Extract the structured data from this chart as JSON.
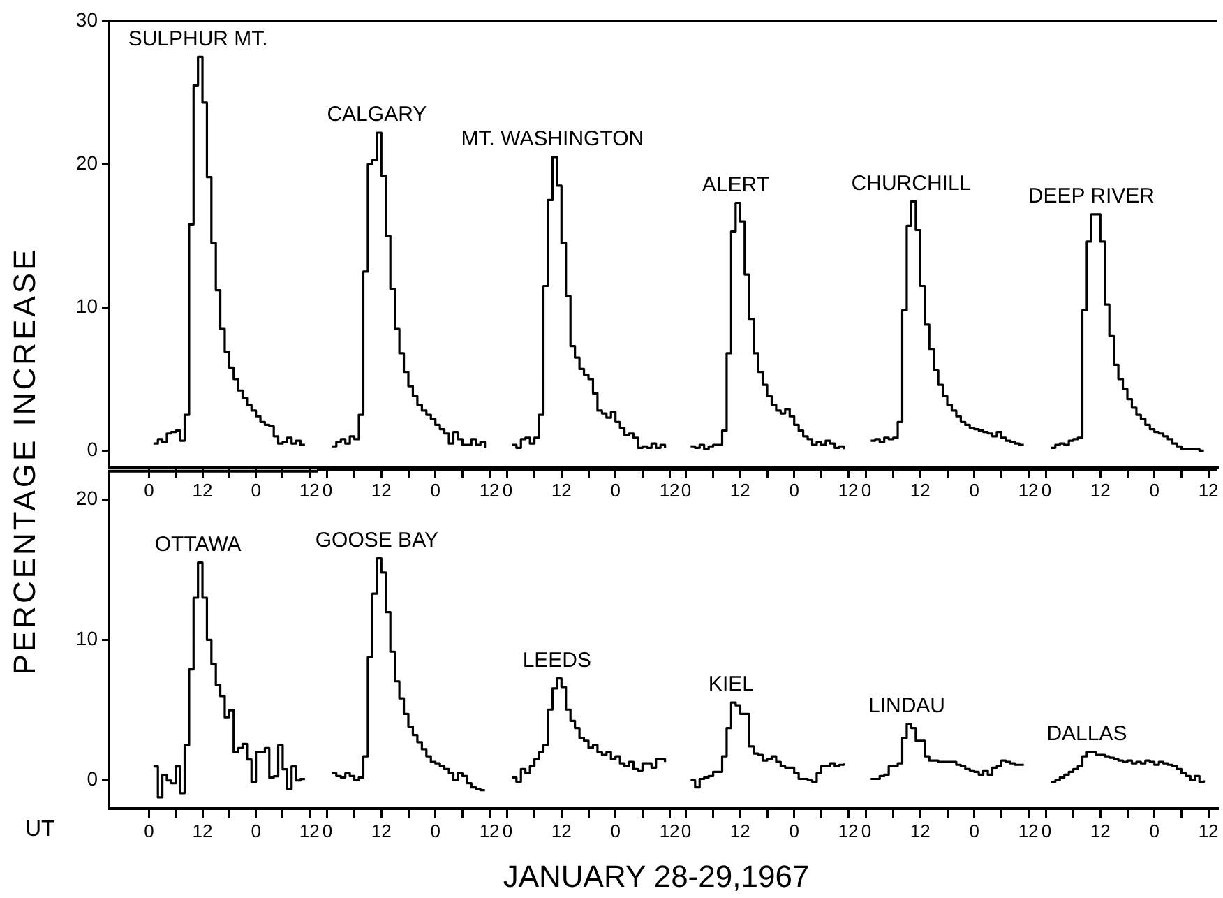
{
  "chart_data": [
    {
      "type": "step",
      "ylabel": "PERCENTAGE INCREASE",
      "xlim": [
        "--01-27T15:00",
        "--01-29T14:00"
      ],
      "ylim": [
        -1.2,
        30
      ],
      "yticks": [
        0,
        10,
        20,
        30
      ],
      "xticks": [
        {
          "value": "--01-28T00:00",
          "label": "0"
        },
        {
          "value": "--01-28T06:00",
          "label": null
        },
        {
          "value": "--01-28T12:00",
          "label": "12"
        },
        {
          "value": "--01-28T18:00",
          "label": null
        },
        {
          "value": "--01-29T00:00",
          "label": "0"
        },
        {
          "value": "--01-29T06:00",
          "label": null
        },
        {
          "value": "--01-29T12:00",
          "label": "12"
        }
      ],
      "grid": false,
      "legend": false,
      "marker": "none",
      "line_style": "solid",
      "series": [
        {
          "name": "SULPHUR MT.",
          "color": "#000000",
          "x": [
            "--01-28T01:00",
            "--01-28T02:00",
            "--01-28T03:00",
            "--01-28T04:00",
            "--01-28T05:00",
            "--01-28T06:00",
            "--01-28T07:00",
            "--01-28T08:00",
            "--01-28T09:00",
            "--01-28T10:00",
            "--01-28T11:00",
            "--01-28T12:00",
            "--01-28T13:00",
            "--01-28T14:00",
            "--01-28T15:00",
            "--01-28T16:00",
            "--01-28T17:00",
            "--01-28T18:00",
            "--01-28T19:00",
            "--01-28T20:00",
            "--01-28T21:00",
            "--01-28T22:00",
            "--01-28T23:00",
            "--01-29T00:00",
            "--01-29T01:00",
            "--01-29T02:00",
            "--01-29T03:00",
            "--01-29T04:00",
            "--01-29T05:00",
            "--01-29T06:00",
            "--01-29T07:00",
            "--01-29T08:00",
            "--01-29T09:00",
            "--01-29T10:00",
            "--01-29T11:00"
          ],
          "values": [
            0.5,
            0.8,
            0.6,
            1.2,
            1.3,
            1.4,
            0.7,
            2.5,
            15.8,
            25.5,
            27.5,
            24.3,
            19.1,
            14.5,
            11.2,
            8.5,
            6.9,
            5.8,
            5.0,
            4.2,
            3.7,
            3.2,
            2.8,
            2.4,
            2.0,
            1.8,
            1.7,
            1.0,
            0.5,
            0.6,
            0.9,
            0.5,
            0.7,
            0.4,
            0.4
          ]
        }
      ]
    },
    {
      "type": "step",
      "tick_labels": "x",
      "xlim": [
        "--01-27T22:00",
        "--01-29T14:00"
      ],
      "ylim": [
        -1.2,
        30
      ],
      "xticks": [
        {
          "value": "--01-28T00:00",
          "label": "0"
        },
        {
          "value": "--01-28T06:00",
          "label": null
        },
        {
          "value": "--01-28T12:00",
          "label": "12"
        },
        {
          "value": "--01-28T18:00",
          "label": null
        },
        {
          "value": "--01-29T00:00",
          "label": "0"
        },
        {
          "value": "--01-29T06:00",
          "label": null
        },
        {
          "value": "--01-29T12:00",
          "label": "12"
        }
      ],
      "grid": false,
      "legend": false,
      "marker": "none",
      "line_style": "solid",
      "series": [
        {
          "name": "CALGARY",
          "color": "#000000",
          "x": [
            "--01-28T01:00",
            "--01-28T02:00",
            "--01-28T03:00",
            "--01-28T04:00",
            "--01-28T05:00",
            "--01-28T06:00",
            "--01-28T07:00",
            "--01-28T08:00",
            "--01-28T09:00",
            "--01-28T10:00",
            "--01-28T11:00",
            "--01-28T12:00",
            "--01-28T13:00",
            "--01-28T14:00",
            "--01-28T15:00",
            "--01-28T16:00",
            "--01-28T17:00",
            "--01-28T18:00",
            "--01-28T19:00",
            "--01-28T20:00",
            "--01-28T21:00",
            "--01-28T22:00",
            "--01-28T23:00",
            "--01-29T00:00",
            "--01-29T01:00",
            "--01-29T02:00",
            "--01-29T03:00",
            "--01-29T04:00",
            "--01-29T05:00",
            "--01-29T06:00",
            "--01-29T07:00",
            "--01-29T08:00",
            "--01-29T09:00",
            "--01-29T10:00",
            "--01-29T11:00"
          ],
          "values": [
            0.3,
            0.6,
            0.8,
            0.5,
            1.0,
            0.8,
            2.5,
            12.5,
            20.0,
            20.3,
            22.2,
            19.2,
            15.0,
            11.3,
            8.5,
            6.8,
            5.5,
            4.5,
            3.8,
            3.2,
            2.8,
            2.5,
            2.2,
            1.8,
            1.5,
            1.2,
            0.5,
            1.3,
            0.8,
            0.4,
            0.4,
            0.8,
            0.4,
            0.6,
            0.2
          ]
        }
      ]
    },
    {
      "type": "step",
      "tick_labels": "x",
      "xlim": [
        "--01-27T22:00",
        "--01-29T14:00"
      ],
      "ylim": [
        -1.2,
        30
      ],
      "xticks": [
        {
          "value": "--01-28T00:00",
          "label": "0"
        },
        {
          "value": "--01-28T06:00",
          "label": null
        },
        {
          "value": "--01-28T12:00",
          "label": "12"
        },
        {
          "value": "--01-28T18:00",
          "label": null
        },
        {
          "value": "--01-29T00:00",
          "label": "0"
        },
        {
          "value": "--01-29T06:00",
          "label": null
        },
        {
          "value": "--01-29T12:00",
          "label": "12"
        }
      ],
      "grid": false,
      "legend": false,
      "marker": "none",
      "line_style": "solid",
      "series": [
        {
          "name": "MT. WASHINGTON",
          "color": "#000000",
          "x": [
            "--01-28T01:00",
            "--01-28T02:00",
            "--01-28T03:00",
            "--01-28T04:00",
            "--01-28T05:00",
            "--01-28T06:00",
            "--01-28T07:00",
            "--01-28T08:00",
            "--01-28T09:00",
            "--01-28T10:00",
            "--01-28T11:00",
            "--01-28T12:00",
            "--01-28T13:00",
            "--01-28T14:00",
            "--01-28T15:00",
            "--01-28T16:00",
            "--01-28T17:00",
            "--01-28T18:00",
            "--01-28T19:00",
            "--01-28T20:00",
            "--01-28T21:00",
            "--01-28T22:00",
            "--01-28T23:00",
            "--01-29T00:00",
            "--01-29T01:00",
            "--01-29T02:00",
            "--01-29T03:00",
            "--01-29T04:00",
            "--01-29T05:00",
            "--01-29T06:00",
            "--01-29T07:00",
            "--01-29T08:00",
            "--01-29T09:00",
            "--01-29T10:00",
            "--01-29T11:00"
          ],
          "values": [
            0.4,
            0.2,
            0.8,
            0.9,
            0.5,
            0.9,
            2.5,
            11.5,
            17.5,
            20.5,
            18.5,
            14.5,
            10.8,
            7.3,
            6.5,
            5.7,
            5.3,
            5.0,
            4.0,
            2.8,
            2.6,
            2.3,
            2.7,
            2.0,
            1.6,
            1.1,
            1.2,
            0.9,
            0.2,
            0.3,
            0.2,
            0.5,
            0.2,
            0.4,
            0.2
          ]
        }
      ]
    },
    {
      "type": "step",
      "tick_labels": "x",
      "xlim": [
        "--01-27T22:00",
        "--01-29T14:00"
      ],
      "ylim": [
        -1.2,
        30
      ],
      "xticks": [
        {
          "value": "--01-28T00:00",
          "label": "0"
        },
        {
          "value": "--01-28T06:00",
          "label": null
        },
        {
          "value": "--01-28T12:00",
          "label": "12"
        },
        {
          "value": "--01-28T18:00",
          "label": null
        },
        {
          "value": "--01-29T00:00",
          "label": "0"
        },
        {
          "value": "--01-29T06:00",
          "label": null
        },
        {
          "value": "--01-29T12:00",
          "label": "12"
        }
      ],
      "grid": false,
      "legend": false,
      "marker": "none",
      "line_style": "solid",
      "series": [
        {
          "name": "ALERT",
          "color": "#000000",
          "x": [
            "--01-28T01:00",
            "--01-28T02:00",
            "--01-28T03:00",
            "--01-28T04:00",
            "--01-28T05:00",
            "--01-28T06:00",
            "--01-28T07:00",
            "--01-28T08:00",
            "--01-28T09:00",
            "--01-28T10:00",
            "--01-28T11:00",
            "--01-28T12:00",
            "--01-28T13:00",
            "--01-28T14:00",
            "--01-28T15:00",
            "--01-28T16:00",
            "--01-28T17:00",
            "--01-28T18:00",
            "--01-28T19:00",
            "--01-28T20:00",
            "--01-28T21:00",
            "--01-28T22:00",
            "--01-28T23:00",
            "--01-29T00:00",
            "--01-29T01:00",
            "--01-29T02:00",
            "--01-29T03:00",
            "--01-29T04:00",
            "--01-29T05:00",
            "--01-29T06:00",
            "--01-29T07:00",
            "--01-29T08:00",
            "--01-29T09:00",
            "--01-29T10:00",
            "--01-29T11:00"
          ],
          "values": [
            0.3,
            0.2,
            0.4,
            0.1,
            0.3,
            0.4,
            0.4,
            1.4,
            6.8,
            15.3,
            17.3,
            16.0,
            12.3,
            9.2,
            6.8,
            5.5,
            4.6,
            3.8,
            3.2,
            2.8,
            2.6,
            2.9,
            2.4,
            1.8,
            1.4,
            1.0,
            0.8,
            0.4,
            0.6,
            0.4,
            0.7,
            0.5,
            0.2,
            0.3,
            0.1
          ]
        }
      ]
    },
    {
      "type": "step",
      "tick_labels": "x",
      "xlim": [
        "--01-27T22:00",
        "--01-29T14:00"
      ],
      "ylim": [
        -1.2,
        30
      ],
      "xticks": [
        {
          "value": "--01-28T00:00",
          "label": "0"
        },
        {
          "value": "--01-28T06:00",
          "label": null
        },
        {
          "value": "--01-28T12:00",
          "label": "12"
        },
        {
          "value": "--01-28T18:00",
          "label": null
        },
        {
          "value": "--01-29T00:00",
          "label": "0"
        },
        {
          "value": "--01-29T06:00",
          "label": null
        },
        {
          "value": "--01-29T12:00",
          "label": "12"
        }
      ],
      "grid": false,
      "legend": false,
      "marker": "none",
      "line_style": "solid",
      "series": [
        {
          "name": "CHURCHILL",
          "color": "#000000",
          "x": [
            "--01-28T01:00",
            "--01-28T02:00",
            "--01-28T03:00",
            "--01-28T04:00",
            "--01-28T05:00",
            "--01-28T06:00",
            "--01-28T07:00",
            "--01-28T08:00",
            "--01-28T09:00",
            "--01-28T10:00",
            "--01-28T11:00",
            "--01-28T12:00",
            "--01-28T13:00",
            "--01-28T14:00",
            "--01-28T15:00",
            "--01-28T16:00",
            "--01-28T17:00",
            "--01-28T18:00",
            "--01-28T19:00",
            "--01-28T20:00",
            "--01-28T21:00",
            "--01-28T22:00",
            "--01-28T23:00",
            "--01-29T00:00",
            "--01-29T01:00",
            "--01-29T02:00",
            "--01-29T03:00",
            "--01-29T04:00",
            "--01-29T05:00",
            "--01-29T06:00",
            "--01-29T07:00",
            "--01-29T08:00",
            "--01-29T09:00",
            "--01-29T10:00",
            "--01-29T11:00"
          ],
          "values": [
            0.7,
            0.8,
            0.6,
            0.9,
            0.8,
            0.9,
            2.0,
            9.8,
            15.7,
            17.4,
            15.4,
            11.5,
            8.8,
            7.1,
            5.6,
            4.6,
            3.8,
            3.2,
            2.8,
            2.4,
            2.0,
            1.8,
            1.6,
            1.5,
            1.4,
            1.3,
            1.2,
            1.0,
            1.3,
            0.9,
            0.7,
            0.6,
            0.5,
            0.4,
            0.4
          ]
        }
      ]
    },
    {
      "type": "step",
      "tick_labels": "x",
      "xlim": [
        "--01-27T22:00",
        "--01-29T14:00"
      ],
      "ylim": [
        -1.2,
        30
      ],
      "xticks": [
        {
          "value": "--01-28T00:00",
          "label": "0"
        },
        {
          "value": "--01-28T06:00",
          "label": null
        },
        {
          "value": "--01-28T12:00",
          "label": "12"
        },
        {
          "value": "--01-28T18:00",
          "label": null
        },
        {
          "value": "--01-29T00:00",
          "label": "0"
        },
        {
          "value": "--01-29T06:00",
          "label": null
        },
        {
          "value": "--01-29T12:00",
          "label": "12"
        }
      ],
      "grid": false,
      "legend": false,
      "marker": "none",
      "line_style": "solid",
      "series": [
        {
          "name": "DEEP RIVER",
          "color": "#000000",
          "x": [
            "--01-28T01:00",
            "--01-28T02:00",
            "--01-28T03:00",
            "--01-28T04:00",
            "--01-28T05:00",
            "--01-28T06:00",
            "--01-28T07:00",
            "--01-28T08:00",
            "--01-28T09:00",
            "--01-28T10:00",
            "--01-28T11:00",
            "--01-28T12:00",
            "--01-28T13:00",
            "--01-28T14:00",
            "--01-28T15:00",
            "--01-28T16:00",
            "--01-28T17:00",
            "--01-28T18:00",
            "--01-28T19:00",
            "--01-28T20:00",
            "--01-28T21:00",
            "--01-28T22:00",
            "--01-28T23:00",
            "--01-29T00:00",
            "--01-29T01:00",
            "--01-29T02:00",
            "--01-29T03:00",
            "--01-29T04:00",
            "--01-29T05:00",
            "--01-29T06:00",
            "--01-29T07:00",
            "--01-29T08:00",
            "--01-29T09:00",
            "--01-29T10:00",
            "--01-29T11:00"
          ],
          "values": [
            0.2,
            0.4,
            0.5,
            0.4,
            0.7,
            0.8,
            0.9,
            9.8,
            14.6,
            16.5,
            16.5,
            14.6,
            10.2,
            8.0,
            6.0,
            5.0,
            4.3,
            3.6,
            3.0,
            2.5,
            2.2,
            1.8,
            1.5,
            1.3,
            1.2,
            1.0,
            0.8,
            0.5,
            0.3,
            0.1,
            0.1,
            0.1,
            0.1,
            0.0,
            0.0
          ]
        }
      ]
    },
    {
      "type": "step",
      "xlabel": "JANUARY 28-29,1967",
      "annotations": [
        "UT"
      ],
      "xlim": [
        "--01-27T15:00",
        "--01-29T14:00"
      ],
      "ylim": [
        -2,
        22
      ],
      "yticks": [
        0,
        10,
        20
      ],
      "xticks": [
        {
          "value": "--01-28T00:00",
          "label": "0"
        },
        {
          "value": "--01-28T06:00",
          "label": null
        },
        {
          "value": "--01-28T12:00",
          "label": "12"
        },
        {
          "value": "--01-28T18:00",
          "label": null
        },
        {
          "value": "--01-29T00:00",
          "label": "0"
        },
        {
          "value": "--01-29T06:00",
          "label": null
        },
        {
          "value": "--01-29T12:00",
          "label": "12"
        }
      ],
      "grid": false,
      "legend": false,
      "marker": "none",
      "line_style": "solid",
      "series": [
        {
          "name": "OTTAWA",
          "color": "#000000",
          "x": [
            "--01-28T01:00",
            "--01-28T02:00",
            "--01-28T03:00",
            "--01-28T04:00",
            "--01-28T05:00",
            "--01-28T06:00",
            "--01-28T07:00",
            "--01-28T08:00",
            "--01-28T09:00",
            "--01-28T10:00",
            "--01-28T11:00",
            "--01-28T12:00",
            "--01-28T13:00",
            "--01-28T14:00",
            "--01-28T15:00",
            "--01-28T16:00",
            "--01-28T17:00",
            "--01-28T18:00",
            "--01-28T19:00",
            "--01-28T20:00",
            "--01-28T21:00",
            "--01-28T22:00",
            "--01-28T23:00",
            "--01-29T00:00",
            "--01-29T01:00",
            "--01-29T02:00",
            "--01-29T03:00",
            "--01-29T04:00",
            "--01-29T05:00",
            "--01-29T06:00",
            "--01-29T07:00",
            "--01-29T08:00",
            "--01-29T09:00",
            "--01-29T10:00",
            "--01-29T11:00"
          ],
          "values": [
            1.0,
            -1.2,
            0.4,
            0.0,
            -0.2,
            1.0,
            -0.9,
            2.5,
            7.9,
            13.0,
            15.5,
            13.0,
            10.0,
            8.3,
            6.8,
            6.0,
            4.5,
            5.0,
            2.0,
            2.3,
            2.6,
            1.5,
            -0.1,
            2.0,
            2.0,
            2.3,
            0.2,
            0.3,
            2.5,
            0.8,
            -0.6,
            1.0,
            0.0,
            0.1,
            0.1
          ]
        }
      ]
    },
    {
      "type": "step",
      "tick_labels": "x",
      "xlim": [
        "--01-27T22:00",
        "--01-29T14:00"
      ],
      "ylim": [
        -2,
        22
      ],
      "xticks": [
        {
          "value": "--01-28T00:00",
          "label": "0"
        },
        {
          "value": "--01-28T06:00",
          "label": null
        },
        {
          "value": "--01-28T12:00",
          "label": "12"
        },
        {
          "value": "--01-28T18:00",
          "label": null
        },
        {
          "value": "--01-29T00:00",
          "label": "0"
        },
        {
          "value": "--01-29T06:00",
          "label": null
        },
        {
          "value": "--01-29T12:00",
          "label": "12"
        }
      ],
      "grid": false,
      "legend": false,
      "marker": "none",
      "line_style": "solid",
      "series": [
        {
          "name": "GOOSE BAY",
          "color": "#000000",
          "x": [
            "--01-28T01:00",
            "--01-28T02:00",
            "--01-28T03:00",
            "--01-28T04:00",
            "--01-28T05:00",
            "--01-28T06:00",
            "--01-28T07:00",
            "--01-28T08:00",
            "--01-28T09:00",
            "--01-28T10:00",
            "--01-28T11:00",
            "--01-28T12:00",
            "--01-28T13:00",
            "--01-28T14:00",
            "--01-28T15:00",
            "--01-28T16:00",
            "--01-28T17:00",
            "--01-28T18:00",
            "--01-28T19:00",
            "--01-28T20:00",
            "--01-28T21:00",
            "--01-28T22:00",
            "--01-28T23:00",
            "--01-29T00:00",
            "--01-29T01:00",
            "--01-29T02:00",
            "--01-29T03:00",
            "--01-29T04:00",
            "--01-29T05:00",
            "--01-29T06:00",
            "--01-29T07:00",
            "--01-29T08:00",
            "--01-29T09:00",
            "--01-29T10:00",
            "--01-29T11:00"
          ],
          "values": [
            0.5,
            0.3,
            0.2,
            0.5,
            0.3,
            0.0,
            0.2,
            1.7,
            8.7,
            13.2,
            15.7,
            14.7,
            11.9,
            9.1,
            7.0,
            5.8,
            4.7,
            3.8,
            3.2,
            2.7,
            2.2,
            1.7,
            1.3,
            1.2,
            1.0,
            0.8,
            0.5,
            0.0,
            0.5,
            0.3,
            -0.2,
            -0.5,
            -0.6,
            -0.7,
            -0.7
          ]
        }
      ]
    },
    {
      "type": "step",
      "tick_labels": "x",
      "xlim": [
        "--01-27T22:00",
        "--01-29T14:00"
      ],
      "ylim": [
        -2,
        22
      ],
      "xticks": [
        {
          "value": "--01-28T00:00",
          "label": "0"
        },
        {
          "value": "--01-28T06:00",
          "label": null
        },
        {
          "value": "--01-28T12:00",
          "label": "12"
        },
        {
          "value": "--01-28T18:00",
          "label": null
        },
        {
          "value": "--01-29T00:00",
          "label": "0"
        },
        {
          "value": "--01-29T06:00",
          "label": null
        },
        {
          "value": "--01-29T12:00",
          "label": "12"
        }
      ],
      "grid": false,
      "legend": false,
      "marker": "none",
      "line_style": "solid",
      "series": [
        {
          "name": "LEEDS",
          "color": "#000000",
          "x": [
            "--01-28T01:00",
            "--01-28T02:00",
            "--01-28T03:00",
            "--01-28T04:00",
            "--01-28T05:00",
            "--01-28T06:00",
            "--01-28T07:00",
            "--01-28T08:00",
            "--01-28T09:00",
            "--01-28T10:00",
            "--01-28T11:00",
            "--01-28T12:00",
            "--01-28T13:00",
            "--01-28T14:00",
            "--01-28T15:00",
            "--01-28T16:00",
            "--01-28T17:00",
            "--01-28T18:00",
            "--01-28T19:00",
            "--01-28T20:00",
            "--01-28T21:00",
            "--01-28T22:00",
            "--01-28T23:00",
            "--01-29T00:00",
            "--01-29T01:00",
            "--01-29T02:00",
            "--01-29T03:00",
            "--01-29T04:00",
            "--01-29T05:00",
            "--01-29T06:00",
            "--01-29T07:00",
            "--01-29T08:00",
            "--01-29T09:00",
            "--01-29T10:00",
            "--01-29T11:00"
          ],
          "values": [
            0.2,
            -0.1,
            0.8,
            0.5,
            1.0,
            1.5,
            2.0,
            2.5,
            5.0,
            6.5,
            7.2,
            6.6,
            5.0,
            4.2,
            3.7,
            3.0,
            2.8,
            2.3,
            2.5,
            2.0,
            1.8,
            2.0,
            1.5,
            1.7,
            1.2,
            1.0,
            1.3,
            0.8,
            0.7,
            1.2,
            1.2,
            0.9,
            1.5,
            1.5,
            1.3
          ]
        }
      ]
    },
    {
      "type": "step",
      "tick_labels": "x",
      "xlim": [
        "--01-27T22:00",
        "--01-29T14:00"
      ],
      "ylim": [
        -2,
        22
      ],
      "xticks": [
        {
          "value": "--01-28T00:00",
          "label": "0"
        },
        {
          "value": "--01-28T06:00",
          "label": null
        },
        {
          "value": "--01-28T12:00",
          "label": "12"
        },
        {
          "value": "--01-28T18:00",
          "label": null
        },
        {
          "value": "--01-29T00:00",
          "label": "0"
        },
        {
          "value": "--01-29T06:00",
          "label": null
        },
        {
          "value": "--01-29T12:00",
          "label": "12"
        }
      ],
      "grid": false,
      "legend": false,
      "marker": "none",
      "line_style": "solid",
      "series": [
        {
          "name": "KIEL",
          "color": "#000000",
          "x": [
            "--01-28T01:00",
            "--01-28T02:00",
            "--01-28T03:00",
            "--01-28T04:00",
            "--01-28T05:00",
            "--01-28T06:00",
            "--01-28T07:00",
            "--01-28T08:00",
            "--01-28T09:00",
            "--01-28T10:00",
            "--01-28T11:00",
            "--01-28T12:00",
            "--01-28T13:00",
            "--01-28T14:00",
            "--01-28T15:00",
            "--01-28T16:00",
            "--01-28T17:00",
            "--01-28T18:00",
            "--01-28T19:00",
            "--01-28T20:00",
            "--01-28T21:00",
            "--01-28T22:00",
            "--01-28T23:00",
            "--01-29T00:00",
            "--01-29T01:00",
            "--01-29T02:00",
            "--01-29T03:00",
            "--01-29T04:00",
            "--01-29T05:00",
            "--01-29T06:00",
            "--01-29T07:00",
            "--01-29T08:00",
            "--01-29T09:00",
            "--01-29T10:00",
            "--01-29T11:00"
          ],
          "values": [
            0.0,
            -0.5,
            0.1,
            0.2,
            0.3,
            0.6,
            0.6,
            1.7,
            3.7,
            5.5,
            5.3,
            4.7,
            4.7,
            2.4,
            1.9,
            1.8,
            1.4,
            1.5,
            1.7,
            1.3,
            1.0,
            0.9,
            0.9,
            0.5,
            0.1,
            0.1,
            0.0,
            -0.1,
            0.5,
            1.0,
            1.0,
            1.2,
            1.0,
            1.1,
            1.2
          ]
        }
      ]
    },
    {
      "type": "step",
      "tick_labels": "x",
      "xlim": [
        "--01-27T22:00",
        "--01-29T14:00"
      ],
      "ylim": [
        -2,
        22
      ],
      "xticks": [
        {
          "value": "--01-28T00:00",
          "label": "0"
        },
        {
          "value": "--01-28T06:00",
          "label": null
        },
        {
          "value": "--01-28T12:00",
          "label": "12"
        },
        {
          "value": "--01-28T18:00",
          "label": null
        },
        {
          "value": "--01-29T00:00",
          "label": "0"
        },
        {
          "value": "--01-29T06:00",
          "label": null
        },
        {
          "value": "--01-29T12:00",
          "label": "12"
        }
      ],
      "grid": false,
      "legend": false,
      "marker": "none",
      "line_style": "solid",
      "series": [
        {
          "name": "LINDAU",
          "color": "#000000",
          "x": [
            "--01-28T01:00",
            "--01-28T02:00",
            "--01-28T03:00",
            "--01-28T04:00",
            "--01-28T05:00",
            "--01-28T06:00",
            "--01-28T07:00",
            "--01-28T08:00",
            "--01-28T09:00",
            "--01-28T10:00",
            "--01-28T11:00",
            "--01-28T12:00",
            "--01-28T13:00",
            "--01-28T14:00",
            "--01-28T15:00",
            "--01-28T16:00",
            "--01-28T17:00",
            "--01-28T18:00",
            "--01-28T19:00",
            "--01-28T20:00",
            "--01-28T21:00",
            "--01-28T22:00",
            "--01-28T23:00",
            "--01-29T00:00",
            "--01-29T01:00",
            "--01-29T02:00",
            "--01-29T03:00",
            "--01-29T04:00",
            "--01-29T05:00",
            "--01-29T06:00",
            "--01-29T07:00",
            "--01-29T08:00",
            "--01-29T09:00",
            "--01-29T10:00",
            "--01-29T11:00"
          ],
          "values": [
            0.1,
            0.1,
            0.3,
            0.4,
            1.0,
            1.0,
            1.2,
            3.0,
            4.0,
            3.7,
            2.8,
            2.8,
            1.7,
            1.4,
            1.4,
            1.3,
            1.3,
            1.3,
            1.3,
            1.1,
            1.0,
            0.8,
            0.7,
            0.6,
            0.4,
            0.7,
            0.4,
            0.9,
            1.0,
            1.4,
            1.3,
            1.2,
            1.1,
            1.1,
            1.1
          ]
        }
      ]
    },
    {
      "type": "step",
      "tick_labels": "x",
      "xlim": [
        "--01-27T22:00",
        "--01-29T14:00"
      ],
      "ylim": [
        -2,
        22
      ],
      "xticks": [
        {
          "value": "--01-28T00:00",
          "label": "0"
        },
        {
          "value": "--01-28T06:00",
          "label": null
        },
        {
          "value": "--01-28T12:00",
          "label": "12"
        },
        {
          "value": "--01-28T18:00",
          "label": null
        },
        {
          "value": "--01-29T00:00",
          "label": "0"
        },
        {
          "value": "--01-29T06:00",
          "label": null
        },
        {
          "value": "--01-29T12:00",
          "label": "12"
        }
      ],
      "grid": false,
      "legend": false,
      "marker": "none",
      "line_style": "solid",
      "series": [
        {
          "name": "DALLAS",
          "color": "#000000",
          "x": [
            "--01-28T01:00",
            "--01-28T02:00",
            "--01-28T03:00",
            "--01-28T04:00",
            "--01-28T05:00",
            "--01-28T06:00",
            "--01-28T07:00",
            "--01-28T08:00",
            "--01-28T09:00",
            "--01-28T10:00",
            "--01-28T11:00",
            "--01-28T12:00",
            "--01-28T13:00",
            "--01-28T14:00",
            "--01-28T15:00",
            "--01-28T16:00",
            "--01-28T17:00",
            "--01-28T18:00",
            "--01-28T19:00",
            "--01-28T20:00",
            "--01-28T21:00",
            "--01-28T22:00",
            "--01-28T23:00",
            "--01-29T00:00",
            "--01-29T01:00",
            "--01-29T02:00",
            "--01-29T03:00",
            "--01-29T04:00",
            "--01-29T05:00",
            "--01-29T06:00",
            "--01-29T07:00",
            "--01-29T08:00",
            "--01-29T09:00",
            "--01-29T10:00",
            "--01-29T11:00"
          ],
          "values": [
            -0.1,
            0.0,
            0.2,
            0.4,
            0.6,
            0.8,
            1.0,
            1.7,
            2.0,
            2.0,
            1.8,
            1.8,
            1.7,
            1.6,
            1.5,
            1.4,
            1.3,
            1.4,
            1.2,
            1.3,
            1.2,
            1.4,
            1.3,
            1.1,
            1.3,
            1.2,
            1.1,
            1.0,
            0.8,
            0.5,
            0.3,
            0.0,
            0.3,
            -0.1,
            0.0
          ]
        }
      ]
    }
  ]
}
